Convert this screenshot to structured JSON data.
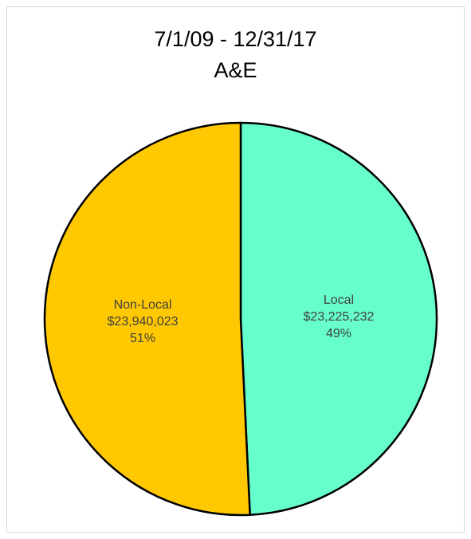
{
  "chart_data": {
    "type": "pie",
    "title": [
      "7/1/09 - 12/31/17",
      "A&E"
    ],
    "slices": [
      {
        "label": "Local",
        "value": 23225232,
        "value_label": "$23,225,232",
        "percent_label": "49%",
        "color": "#66ffcc"
      },
      {
        "label": "Non-Local",
        "value": 23940023,
        "value_label": "$23,940,023",
        "percent_label": "51%",
        "color": "#ffc800"
      }
    ],
    "start_direction": "top",
    "order": "clockwise",
    "legend": "none"
  }
}
